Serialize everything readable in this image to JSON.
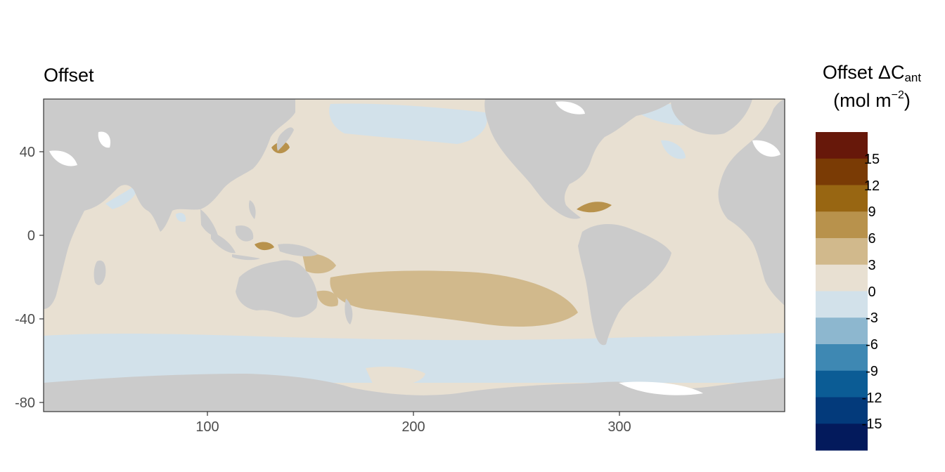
{
  "title": "Offset",
  "legend": {
    "title_main": "Offset ΔC",
    "title_sub": "ant",
    "unit_open": "(mol m",
    "unit_sup": "−2",
    "unit_close": ")",
    "bins": [
      {
        "color": "#67180a"
      },
      {
        "color": "#7a3b05"
      },
      {
        "color": "#986612"
      },
      {
        "color": "#b8924c"
      },
      {
        "color": "#d1b98c"
      },
      {
        "color": "#e8e0d2"
      },
      {
        "color": "#d2e1ea"
      },
      {
        "color": "#8db7cf"
      },
      {
        "color": "#3e88b3"
      },
      {
        "color": "#0b5c95"
      },
      {
        "color": "#033a7b"
      },
      {
        "color": "#031a5c"
      }
    ],
    "breaks": [
      "15",
      "12",
      "9",
      "6",
      "3",
      "0",
      "-3",
      "-6",
      "-9",
      "-12",
      "-15"
    ]
  },
  "axes": {
    "x_ticks": [
      "100",
      "200",
      "300"
    ],
    "y_ticks": [
      "40",
      "0",
      "-40",
      "-80"
    ]
  },
  "colors": {
    "land": "#cbcbcb",
    "ocean_base": "#e8e0d2",
    "ocean_negative": "#d2e1ea",
    "ocean_positive": "#d1b98c",
    "ocean_strong": "#b8924c",
    "no_data": "#ffffff"
  }
}
